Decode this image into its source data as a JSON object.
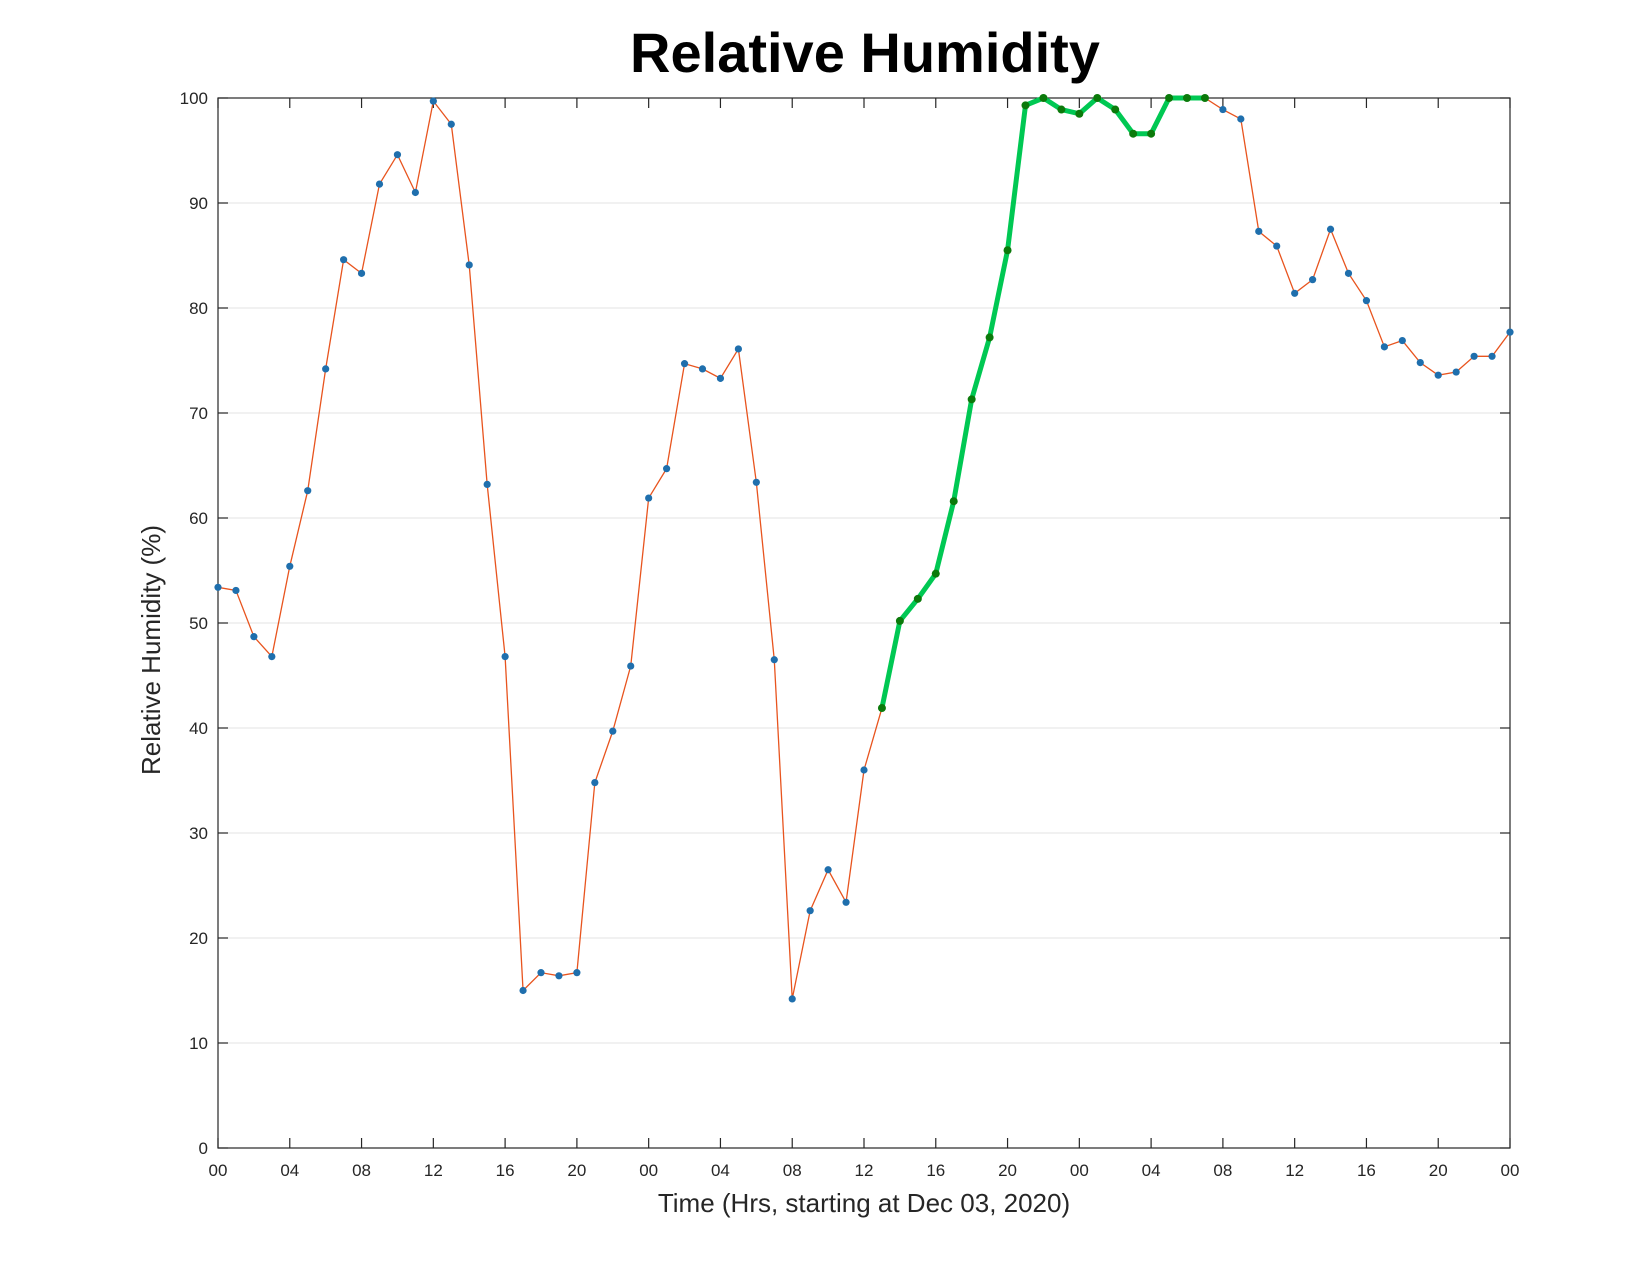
{
  "chart_data": {
    "type": "line",
    "title": "Relative Humidity",
    "xlabel": "Time (Hrs, starting at Dec 03, 2020)",
    "ylabel": "Relative Humidity (%)",
    "x_unit": "hours since Dec 03, 2020 00:00",
    "xlim": [
      0,
      72
    ],
    "ylim": [
      0,
      100
    ],
    "grid": "horizontal",
    "x_ticks": [
      0,
      4,
      8,
      12,
      16,
      20,
      24,
      28,
      32,
      36,
      40,
      44,
      48,
      52,
      56,
      60,
      64,
      68,
      72
    ],
    "x_tick_labels": [
      "00",
      "04",
      "08",
      "12",
      "16",
      "20",
      "00",
      "04",
      "08",
      "12",
      "16",
      "20",
      "00",
      "04",
      "08",
      "12",
      "16",
      "20",
      "00"
    ],
    "y_ticks": [
      0,
      10,
      20,
      30,
      40,
      50,
      60,
      70,
      80,
      90,
      100
    ],
    "y_tick_labels": [
      "0",
      "10",
      "20",
      "30",
      "40",
      "50",
      "60",
      "70",
      "80",
      "90",
      "100"
    ],
    "x": [
      0,
      1,
      2,
      3,
      4,
      5,
      6,
      7,
      8,
      9,
      10,
      11,
      12,
      13,
      14,
      15,
      16,
      17,
      18,
      19,
      20,
      21,
      22,
      23,
      24,
      25,
      26,
      27,
      28,
      29,
      30,
      31,
      32,
      33,
      34,
      35,
      36,
      37,
      38,
      39,
      40,
      41,
      42,
      43,
      44,
      45,
      46,
      47,
      48,
      49,
      50,
      51,
      52,
      53,
      54,
      55,
      56,
      57,
      58,
      59,
      60,
      61,
      62,
      63,
      64,
      65,
      66,
      67,
      68,
      69,
      70,
      71,
      72
    ],
    "series": [
      {
        "line_color": "#e8541e",
        "marker_color": "#1f6fad",
        "values": [
          53.4,
          53.1,
          48.7,
          46.8,
          55.4,
          62.6,
          74.2,
          84.6,
          83.3,
          91.8,
          94.6,
          91.0,
          99.7,
          97.5,
          84.1,
          63.2,
          46.8,
          15.0,
          16.7,
          16.4,
          16.7,
          34.8,
          39.7,
          45.9,
          61.9,
          64.7,
          74.7,
          74.2,
          73.3,
          76.1,
          63.4,
          46.5,
          14.2,
          22.6,
          26.5,
          23.4,
          36.0,
          41.9,
          50.2,
          52.3,
          54.7,
          61.6,
          71.3,
          77.2,
          85.5,
          99.3,
          100.0,
          98.9,
          98.5,
          100.0,
          98.9,
          96.6,
          96.6,
          100.0,
          100.0,
          100.0,
          98.9,
          98.0,
          87.3,
          85.9,
          81.4,
          82.7,
          87.5,
          83.3,
          80.7,
          76.3,
          76.9,
          74.8,
          73.6,
          73.9,
          75.4,
          75.4,
          77.7
        ]
      }
    ],
    "highlight": {
      "x_start": 37,
      "x_end": 55,
      "line_color": "#00c853",
      "marker_color": "#0b7a0b"
    }
  }
}
